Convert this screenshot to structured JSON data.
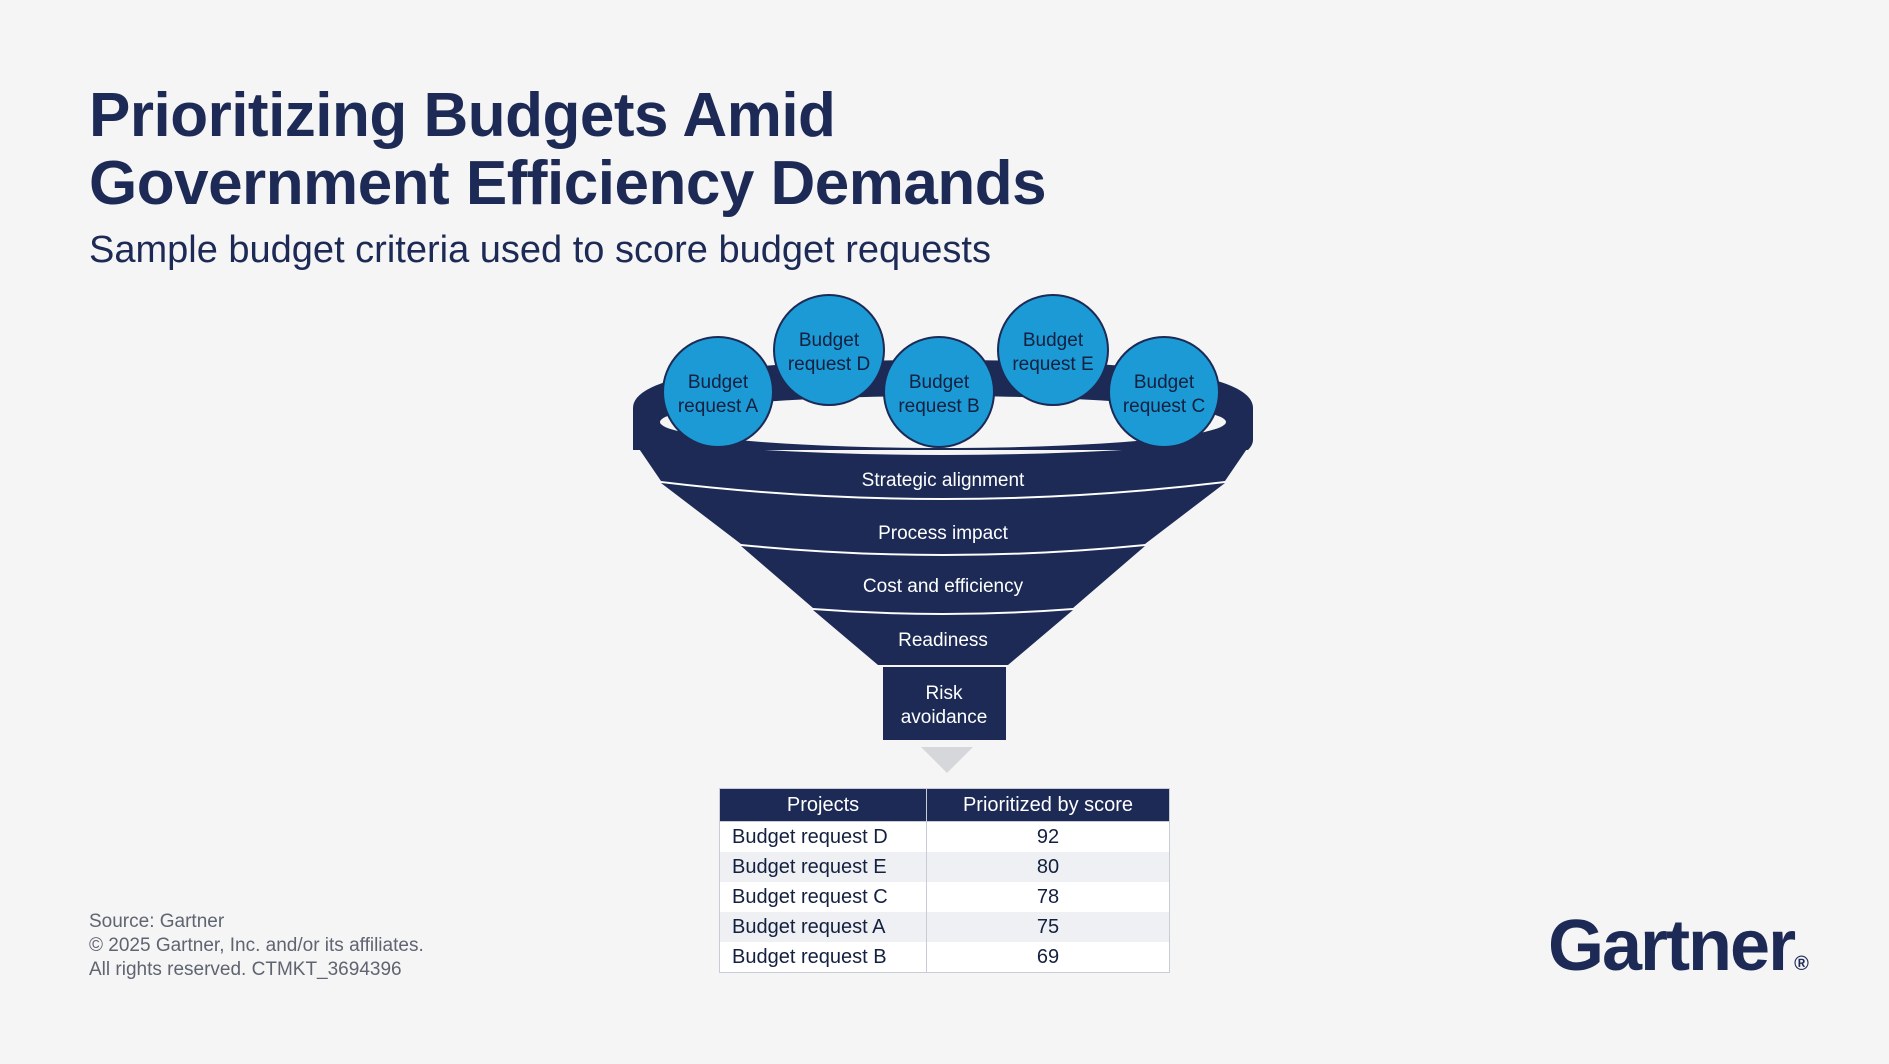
{
  "header": {
    "title_line1": "Prioritizing Budgets Amid",
    "title_line2": "Government Efficiency Demands",
    "subtitle": "Sample budget criteria used to score budget requests"
  },
  "funnel": {
    "bubbles": [
      {
        "line1": "Budget",
        "line2": "request A"
      },
      {
        "line1": "Budget",
        "line2": "request D"
      },
      {
        "line1": "Budget",
        "line2": "request B"
      },
      {
        "line1": "Budget",
        "line2": "request E"
      },
      {
        "line1": "Budget",
        "line2": "request C"
      }
    ],
    "criteria": [
      "Strategic alignment",
      "Process impact",
      "Cost and efficiency",
      "Readiness"
    ],
    "spout_line1": "Risk",
    "spout_line2": "avoidance"
  },
  "table": {
    "headers": [
      "Projects",
      "Prioritized by score"
    ],
    "rows": [
      {
        "project": "Budget request D",
        "score": "92"
      },
      {
        "project": "Budget request E",
        "score": "80"
      },
      {
        "project": "Budget request C",
        "score": "78"
      },
      {
        "project": "Budget request A",
        "score": "75"
      },
      {
        "project": "Budget request B",
        "score": "69"
      }
    ]
  },
  "footer": {
    "source": "Source: Gartner",
    "copyright": "© 2025 Gartner, Inc. and/or its affiliates.",
    "rights": "All rights reserved. CTMKT_3694396"
  },
  "logo": {
    "text": "Gartner",
    "mark": "®"
  },
  "colors": {
    "navy": "#1c2a55",
    "bubble_blue": "#1b9ad6",
    "background": "#f5f5f6",
    "arrow_gray": "#d6d7da"
  }
}
